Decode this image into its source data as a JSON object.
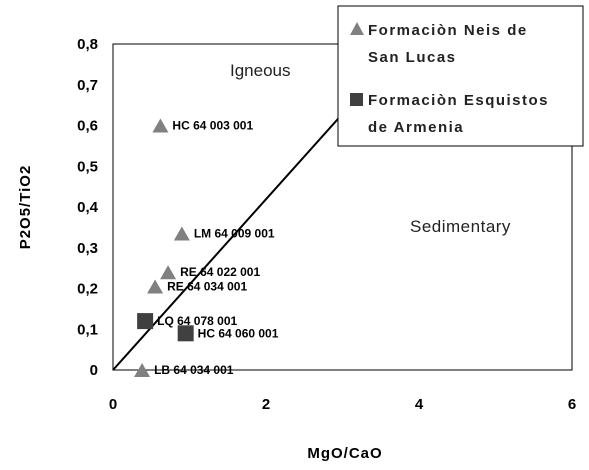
{
  "chart_data": {
    "type": "scatter",
    "xlabel": "MgO/CaO",
    "ylabel": "P2O5/TiO2",
    "xlim": [
      0,
      6
    ],
    "ylim": [
      0,
      0.8
    ],
    "x_ticks": [
      "0",
      "2",
      "4",
      "6"
    ],
    "y_ticks": [
      "0",
      "0,1",
      "0,2",
      "0,3",
      "0,4",
      "0,5",
      "0,6",
      "0,7",
      "0,8"
    ],
    "grid": false,
    "legend_position": "top-right",
    "series": [
      {
        "name": "Formaciòn Neis de San Lucas",
        "marker": "triangle",
        "color": "#808080",
        "points": [
          {
            "x": 0.62,
            "y": 0.6,
            "label": "HC 64 003 001"
          },
          {
            "x": 0.9,
            "y": 0.335,
            "label": "LM 64 009 001"
          },
          {
            "x": 0.72,
            "y": 0.24,
            "label": "RE 64 022 001"
          },
          {
            "x": 0.55,
            "y": 0.205,
            "label": "RE 64 034 001"
          },
          {
            "x": 0.38,
            "y": 0.0,
            "label": "LB 64 034 001"
          }
        ]
      },
      {
        "name": "Formaciòn Esquistos de Armenia",
        "marker": "square",
        "color": "#404040",
        "points": [
          {
            "x": 0.42,
            "y": 0.12,
            "label": "LQ 64 078 001"
          },
          {
            "x": 0.95,
            "y": 0.09,
            "label": "HC 64 060 001"
          }
        ]
      }
    ],
    "divider_line": {
      "from": [
        0,
        0
      ],
      "to": [
        3.15,
        0.66
      ]
    },
    "annotations": [
      "Igneous",
      "Sedimentary"
    ]
  },
  "legend": {
    "series1_line1": "Formaciòn Neis de",
    "series1_line2": "San Lucas",
    "series2_line1": "Formaciòn Esquistos",
    "series2_line2": "de Armenia"
  },
  "regions": {
    "igneous": "Igneous",
    "sedimentary": "Sedimentary"
  }
}
